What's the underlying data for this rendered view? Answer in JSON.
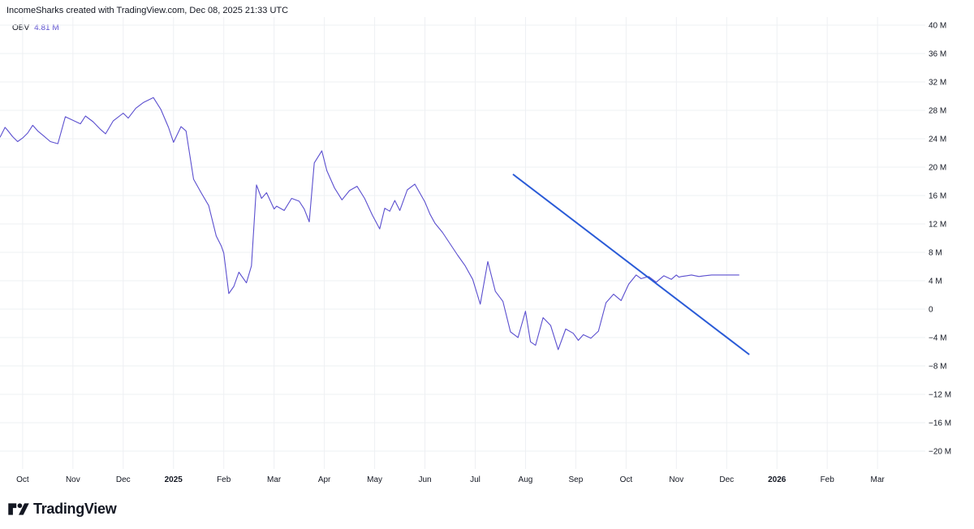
{
  "header": {
    "text": "IncomeSharks created with TradingView.com, Dec 08, 2025 21:33 UTC"
  },
  "legend": {
    "name": "OBV",
    "value": "4.81 M"
  },
  "brand": {
    "name": "TradingView"
  },
  "colors": {
    "series": "#5b4fcf",
    "trendline": "#2a5bd7",
    "grid": "#eef0f3"
  },
  "chart_data": {
    "type": "line",
    "title": "OBV",
    "ylabel": "",
    "xlabel": "",
    "ylim": [
      -20,
      40
    ],
    "y_unit": "M",
    "yticks": [
      "40 M",
      "36 M",
      "32 M",
      "28 M",
      "24 M",
      "20 M",
      "16 M",
      "12 M",
      "8 M",
      "4 M",
      "0",
      "−4 M",
      "−8 M",
      "−12 M",
      "−16 M",
      "−20 M"
    ],
    "ytick_values": [
      40,
      36,
      32,
      28,
      24,
      20,
      16,
      12,
      8,
      4,
      0,
      -4,
      -8,
      -12,
      -16,
      -20
    ],
    "xticks": [
      {
        "label": "Oct",
        "month": 0,
        "bold": false
      },
      {
        "label": "Nov",
        "month": 1,
        "bold": false
      },
      {
        "label": "Dec",
        "month": 2,
        "bold": false
      },
      {
        "label": "2025",
        "month": 3,
        "bold": true
      },
      {
        "label": "Feb",
        "month": 4,
        "bold": false
      },
      {
        "label": "Mar",
        "month": 5,
        "bold": false
      },
      {
        "label": "Apr",
        "month": 6,
        "bold": false
      },
      {
        "label": "May",
        "month": 7,
        "bold": false
      },
      {
        "label": "Jun",
        "month": 8,
        "bold": false
      },
      {
        "label": "Jul",
        "month": 9,
        "bold": false
      },
      {
        "label": "Aug",
        "month": 10,
        "bold": false
      },
      {
        "label": "Sep",
        "month": 11,
        "bold": false
      },
      {
        "label": "Oct",
        "month": 12,
        "bold": false
      },
      {
        "label": "Nov",
        "month": 13,
        "bold": false
      },
      {
        "label": "Dec",
        "month": 14,
        "bold": false
      },
      {
        "label": "2026",
        "month": 15,
        "bold": true
      },
      {
        "label": "Feb",
        "month": 16,
        "bold": false
      },
      {
        "label": "Mar",
        "month": 17,
        "bold": false
      }
    ],
    "xlim": [
      -0.45,
      17.95
    ],
    "series": [
      {
        "name": "OBV",
        "x": [
          -0.45,
          -0.35,
          -0.3,
          -0.2,
          -0.1,
          0.0,
          0.1,
          0.2,
          0.3,
          0.4,
          0.55,
          0.7,
          0.85,
          1.0,
          1.15,
          1.25,
          1.4,
          1.55,
          1.65,
          1.8,
          2.0,
          2.1,
          2.25,
          2.4,
          2.6,
          2.75,
          2.9,
          3.0,
          3.15,
          3.25,
          3.4,
          3.55,
          3.7,
          3.85,
          3.95,
          4.0,
          4.1,
          4.2,
          4.3,
          4.45,
          4.55,
          4.65,
          4.75,
          4.85,
          5.0,
          5.05,
          5.2,
          5.35,
          5.5,
          5.6,
          5.7,
          5.8,
          5.95,
          6.05,
          6.2,
          6.35,
          6.5,
          6.65,
          6.8,
          6.95,
          7.1,
          7.2,
          7.3,
          7.4,
          7.5,
          7.65,
          7.8,
          8.0,
          8.1,
          8.2,
          8.35,
          8.5,
          8.65,
          8.8,
          8.95,
          9.1,
          9.25,
          9.4,
          9.55,
          9.7,
          9.85,
          10.0,
          10.1,
          10.2,
          10.35,
          10.5,
          10.65,
          10.8,
          10.95,
          11.05,
          11.15,
          11.3,
          11.45,
          11.6,
          11.75,
          11.9,
          12.05,
          12.2,
          12.3,
          12.45,
          12.6,
          12.75,
          12.9,
          13.0,
          13.05,
          13.1,
          13.2,
          13.3,
          13.45,
          13.55,
          13.7,
          13.85,
          13.95,
          14.05,
          14.15,
          14.25
        ],
        "values": [
          24.2,
          25.6,
          25.2,
          24.3,
          23.6,
          24.1,
          24.8,
          25.9,
          25.1,
          24.5,
          23.6,
          23.3,
          27.1,
          26.6,
          26.1,
          27.2,
          26.4,
          25.3,
          24.7,
          26.5,
          27.6,
          26.9,
          28.3,
          29.1,
          29.8,
          28.1,
          25.6,
          23.5,
          25.7,
          25.1,
          18.3,
          16.4,
          14.6,
          10.3,
          8.9,
          7.9,
          2.2,
          3.2,
          5.2,
          3.7,
          6.1,
          17.5,
          15.6,
          16.4,
          14.1,
          14.5,
          13.9,
          15.6,
          15.2,
          14.1,
          12.3,
          20.6,
          22.3,
          19.5,
          17.1,
          15.4,
          16.7,
          17.3,
          15.6,
          13.3,
          11.3,
          14.2,
          13.8,
          15.3,
          13.9,
          16.8,
          17.6,
          15.1,
          13.4,
          12.1,
          10.8,
          9.2,
          7.6,
          6.1,
          4.2,
          0.7,
          6.7,
          2.5,
          1.1,
          -3.2,
          -4.0,
          -0.3,
          -4.6,
          -5.1,
          -1.2,
          -2.3,
          -5.7,
          -2.8,
          -3.4,
          -4.4,
          -3.6,
          -4.1,
          -3.1,
          0.9,
          2.1,
          1.2,
          3.5,
          4.81,
          4.3,
          4.6,
          3.8,
          4.7,
          4.2,
          4.81,
          4.5,
          4.6,
          4.7,
          4.81,
          4.6,
          4.7,
          4.81,
          4.81,
          4.81,
          4.81,
          4.81,
          4.81
        ]
      }
    ],
    "trendline": {
      "x": [
        9.75,
        14.45
      ],
      "values": [
        19.0,
        -6.4
      ]
    }
  }
}
